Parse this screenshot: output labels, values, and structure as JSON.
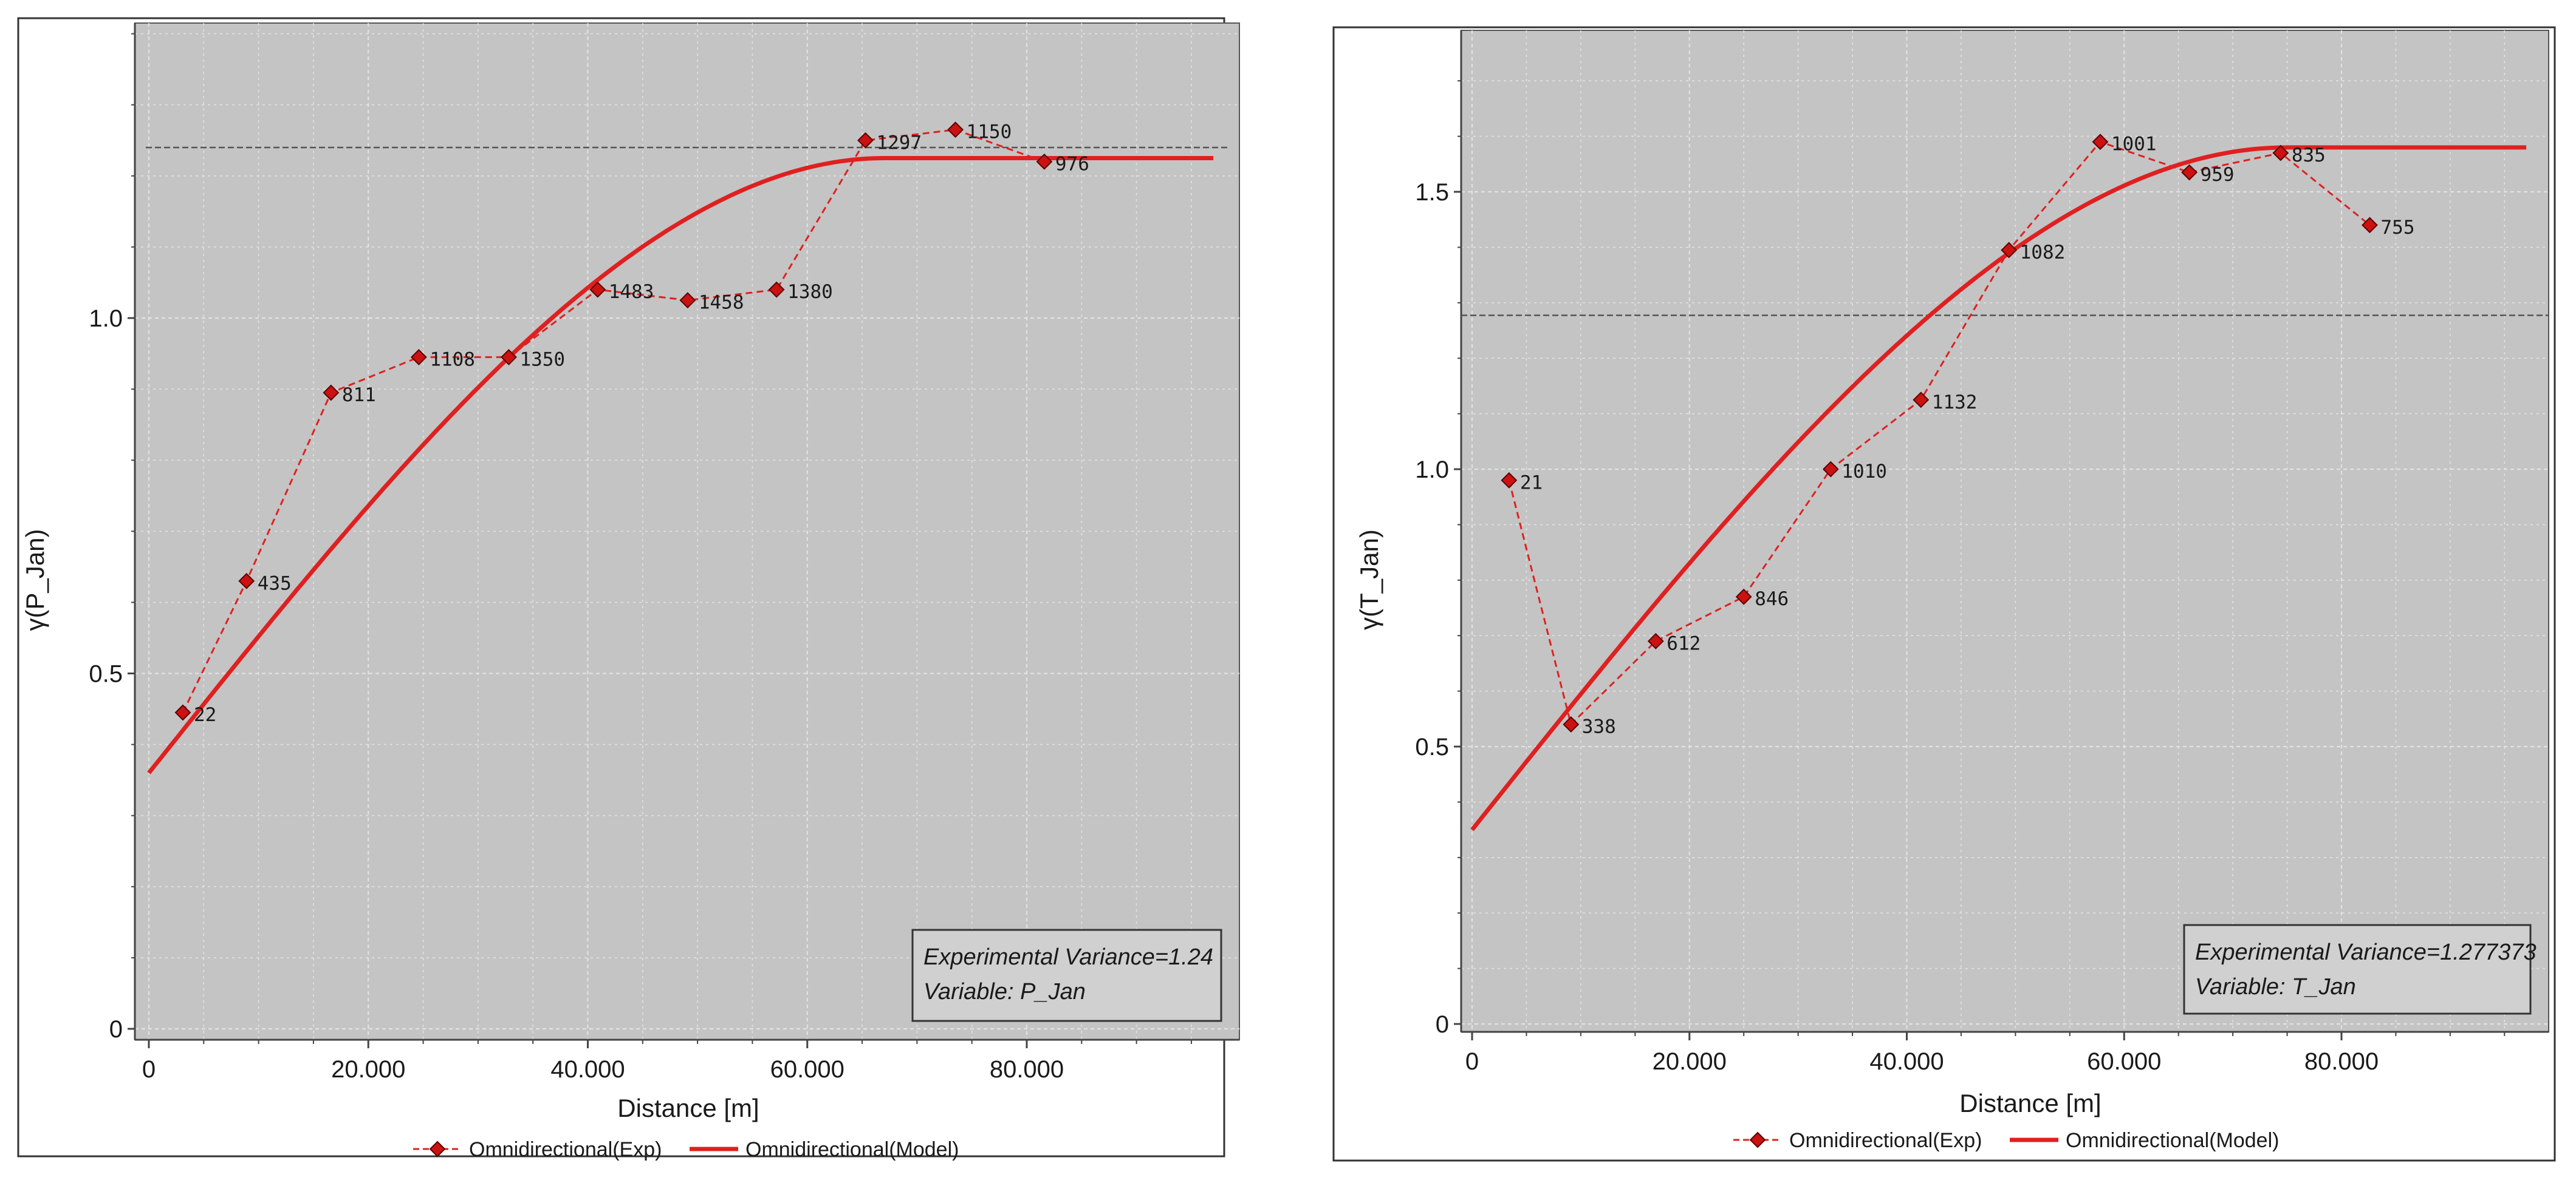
{
  "chart_data": [
    {
      "type": "line",
      "xlabel": "Distance [m]",
      "ylabel": "γ(P_Jan)",
      "xlim": [
        0,
        97000
      ],
      "ylim": [
        0,
        1.4
      ],
      "x_ticks": [
        0,
        20000,
        40000,
        60000,
        80000
      ],
      "x_tick_labels": [
        "0",
        "20.000",
        "40.000",
        "60.000",
        "80.000"
      ],
      "y_ticks": [
        0,
        0.5,
        1.0
      ],
      "y_tick_labels": [
        "0",
        "0.5",
        "1.0"
      ],
      "experimental_variance_line": 1.24,
      "info_box": [
        "Experimental Variance=1.24",
        "Variable: P_Jan"
      ],
      "series": [
        {
          "name": "Omnidirectional(Exp)",
          "style": "dashed-diamonds",
          "color": "#e02020",
          "points": [
            {
              "x": 3100,
              "y": 0.445,
              "label": "22"
            },
            {
              "x": 8900,
              "y": 0.63,
              "label": "435"
            },
            {
              "x": 16600,
              "y": 0.895,
              "label": "811"
            },
            {
              "x": 24600,
              "y": 0.945,
              "label": "1108"
            },
            {
              "x": 32800,
              "y": 0.945,
              "label": "1350"
            },
            {
              "x": 40900,
              "y": 1.04,
              "label": "1483"
            },
            {
              "x": 49100,
              "y": 1.025,
              "label": "1458"
            },
            {
              "x": 57200,
              "y": 1.04,
              "label": "1380"
            },
            {
              "x": 65300,
              "y": 1.25,
              "label": "1297"
            },
            {
              "x": 73500,
              "y": 1.265,
              "label": "1150"
            },
            {
              "x": 81600,
              "y": 1.22,
              "label": "976"
            }
          ]
        },
        {
          "name": "Omnidirectional(Model)",
          "style": "solid",
          "color": "#e02020",
          "model": {
            "nugget": 0.36,
            "sill": 1.225,
            "range": 67000,
            "x_end": 97000
          }
        }
      ]
    },
    {
      "type": "line",
      "xlabel": "Distance [m]",
      "ylabel": "γ(T_Jan)",
      "xlim": [
        0,
        97000
      ],
      "ylim": [
        0,
        1.8
      ],
      "x_ticks": [
        0,
        20000,
        40000,
        60000,
        80000
      ],
      "x_tick_labels": [
        "0",
        "20.000",
        "40.000",
        "60.000",
        "80.000"
      ],
      "y_ticks": [
        0,
        0.5,
        1.0,
        1.5
      ],
      "y_tick_labels": [
        "0",
        "0.5",
        "1.0",
        "1.5"
      ],
      "experimental_variance_line": 1.277373,
      "info_box": [
        "Experimental Variance=1.277373",
        "Variable: T_Jan"
      ],
      "series": [
        {
          "name": "Omnidirectional(Exp)",
          "style": "dashed-diamonds",
          "color": "#e02020",
          "points": [
            {
              "x": 3400,
              "y": 0.98,
              "label": "21"
            },
            {
              "x": 9100,
              "y": 0.54,
              "label": "338"
            },
            {
              "x": 16900,
              "y": 0.69,
              "label": "612"
            },
            {
              "x": 25000,
              "y": 0.77,
              "label": "846"
            },
            {
              "x": 33000,
              "y": 1.0,
              "label": "1010"
            },
            {
              "x": 41300,
              "y": 1.125,
              "label": "1132"
            },
            {
              "x": 49400,
              "y": 1.395,
              "label": "1082"
            },
            {
              "x": 57800,
              "y": 1.59,
              "label": "1001"
            },
            {
              "x": 66000,
              "y": 1.535,
              "label": "959"
            },
            {
              "x": 74400,
              "y": 1.57,
              "label": "835"
            },
            {
              "x": 82600,
              "y": 1.44,
              "label": "755"
            }
          ]
        },
        {
          "name": "Omnidirectional(Model)",
          "style": "solid",
          "color": "#e02020",
          "model": {
            "nugget": 0.35,
            "sill": 1.58,
            "range": 75000,
            "x_end": 97000
          }
        }
      ]
    }
  ],
  "legend": {
    "exp_label": "Omnidirectional(Exp)",
    "model_label": "Omnidirectional(Model)"
  },
  "colors": {
    "plot_bg": "#c4c4c4",
    "grid": "#e6e6e6",
    "series": "#e02020",
    "diamond_fill": "#cc1111",
    "ref_line": "#555555"
  }
}
